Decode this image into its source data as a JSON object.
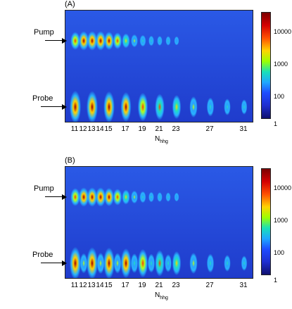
{
  "panels": [
    {
      "label": "(A)",
      "pump_label": "Pump",
      "probe_label": "Probe",
      "x_ticks": [
        "11",
        "12",
        "13",
        "14",
        "15",
        "17",
        "19",
        "21",
        "23",
        "27",
        "31"
      ],
      "x_label_main": "N",
      "x_label_sub": "hhg",
      "colorbar_ticks": [
        "10000",
        "1000",
        "100",
        "1"
      ]
    },
    {
      "label": "(B)",
      "pump_label": "Pump",
      "probe_label": "Probe",
      "x_ticks": [
        "11",
        "12",
        "13",
        "14",
        "15",
        "17",
        "19",
        "21",
        "23",
        "27",
        "31"
      ],
      "x_label_main": "N",
      "x_label_sub": "hhg",
      "colorbar_ticks": [
        "10000",
        "1000",
        "100",
        "1"
      ]
    }
  ],
  "chart_data": [
    {
      "type": "heatmap",
      "title": "(A)",
      "xlabel": "N_hhg",
      "x_ticks": [
        11,
        12,
        13,
        14,
        15,
        17,
        19,
        21,
        23,
        27,
        31
      ],
      "rows": [
        "Pump",
        "Probe"
      ],
      "colorbar": {
        "scale": "log",
        "ticks": [
          1,
          100,
          1000,
          10000
        ]
      },
      "pump_peaks": [
        {
          "order": 11,
          "intensity": 10000
        },
        {
          "order": 12,
          "intensity": 20000
        },
        {
          "order": 13,
          "intensity": 20000
        },
        {
          "order": 14,
          "intensity": 20000
        },
        {
          "order": 15,
          "intensity": 12000
        },
        {
          "order": 16,
          "intensity": 5000
        },
        {
          "order": 17,
          "intensity": 2000
        },
        {
          "order": 18,
          "intensity": 800
        },
        {
          "order": 19,
          "intensity": 400
        },
        {
          "order": 20,
          "intensity": 200
        },
        {
          "order": 21,
          "intensity": 150
        },
        {
          "order": 22,
          "intensity": 120
        },
        {
          "order": 23,
          "intensity": 100
        }
      ],
      "probe_peaks": [
        {
          "order": 11,
          "intensity": 30000
        },
        {
          "order": 13,
          "intensity": 25000
        },
        {
          "order": 15,
          "intensity": 20000
        },
        {
          "order": 17,
          "intensity": 12000
        },
        {
          "order": 19,
          "intensity": 8000
        },
        {
          "order": 21,
          "intensity": 4000
        },
        {
          "order": 23,
          "intensity": 2000
        },
        {
          "order": 25,
          "intensity": 800
        },
        {
          "order": 27,
          "intensity": 400
        },
        {
          "order": 29,
          "intensity": 200
        },
        {
          "order": 31,
          "intensity": 120
        }
      ]
    },
    {
      "type": "heatmap",
      "title": "(B)",
      "xlabel": "N_hhg",
      "x_ticks": [
        11,
        12,
        13,
        14,
        15,
        17,
        19,
        21,
        23,
        27,
        31
      ],
      "rows": [
        "Pump",
        "Probe"
      ],
      "colorbar": {
        "scale": "log",
        "ticks": [
          1,
          100,
          1000,
          10000
        ]
      },
      "pump_peaks": [
        {
          "order": 11,
          "intensity": 10000
        },
        {
          "order": 12,
          "intensity": 20000
        },
        {
          "order": 13,
          "intensity": 20000
        },
        {
          "order": 14,
          "intensity": 20000
        },
        {
          "order": 15,
          "intensity": 12000
        },
        {
          "order": 16,
          "intensity": 5000
        },
        {
          "order": 17,
          "intensity": 2000
        },
        {
          "order": 18,
          "intensity": 800
        },
        {
          "order": 19,
          "intensity": 400
        },
        {
          "order": 20,
          "intensity": 200
        },
        {
          "order": 21,
          "intensity": 150
        },
        {
          "order": 22,
          "intensity": 120
        },
        {
          "order": 23,
          "intensity": 100
        }
      ],
      "probe_peaks": [
        {
          "order": 11,
          "intensity": 30000
        },
        {
          "order": 12,
          "intensity": 600
        },
        {
          "order": 13,
          "intensity": 25000
        },
        {
          "order": 14,
          "intensity": 800
        },
        {
          "order": 15,
          "intensity": 20000
        },
        {
          "order": 16,
          "intensity": 700
        },
        {
          "order": 17,
          "intensity": 12000
        },
        {
          "order": 18,
          "intensity": 500
        },
        {
          "order": 19,
          "intensity": 8000
        },
        {
          "order": 20,
          "intensity": 400
        },
        {
          "order": 21,
          "intensity": 4000
        },
        {
          "order": 22,
          "intensity": 300
        },
        {
          "order": 23,
          "intensity": 2000
        },
        {
          "order": 25,
          "intensity": 800
        },
        {
          "order": 27,
          "intensity": 400
        },
        {
          "order": 29,
          "intensity": 200
        },
        {
          "order": 31,
          "intensity": 120
        }
      ]
    }
  ]
}
